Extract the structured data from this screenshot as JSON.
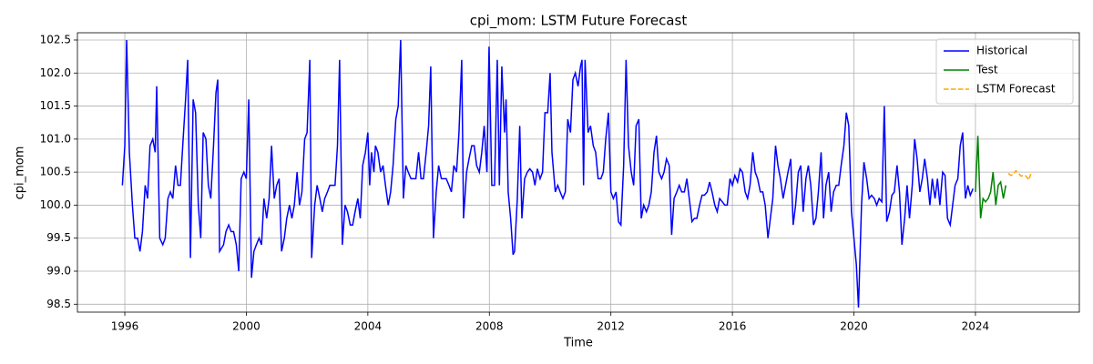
{
  "chart_data": {
    "type": "line",
    "title": "cpi_mom: LSTM Future Forecast",
    "xlabel": "Time",
    "ylabel": "cpi_mom",
    "xlim": [
      1994.44,
      2027.42
    ],
    "ylim": [
      98.38,
      102.61
    ],
    "xticks": [
      1996,
      2000,
      2004,
      2008,
      2012,
      2016,
      2020,
      2024
    ],
    "yticks": [
      {
        "value": 98.5,
        "label": "98.5"
      },
      {
        "value": 99,
        "label": "99.0"
      },
      {
        "value": 99.5,
        "label": "99.5"
      },
      {
        "value": 100,
        "label": "100.0"
      },
      {
        "value": 100.5,
        "label": "100.5"
      },
      {
        "value": 101,
        "label": "101.0"
      },
      {
        "value": 101.5,
        "label": "101.5"
      },
      {
        "value": 102,
        "label": "102.0"
      },
      {
        "value": 102.5,
        "label": "102.5"
      }
    ],
    "grid": true,
    "legend": "upper right",
    "series": [
      {
        "name": "Historical",
        "color": "#0000ff",
        "linestyle": "solid",
        "x": [
          1995.92,
          1996.0,
          1996.06,
          1996.15,
          1996.25,
          1996.33,
          1996.42,
          1996.5,
          1996.58,
          1996.67,
          1996.75,
          1996.83,
          1996.92,
          1997.0,
          1997.05,
          1997.15,
          1997.25,
          1997.33,
          1997.42,
          1997.5,
          1997.58,
          1997.67,
          1997.75,
          1997.83,
          1997.92,
          1998.0,
          1998.07,
          1998.16,
          1998.25,
          1998.33,
          1998.42,
          1998.5,
          1998.58,
          1998.67,
          1998.75,
          1998.83,
          1998.92,
          1999.0,
          1999.06,
          1999.12,
          1999.25,
          1999.33,
          1999.42,
          1999.5,
          1999.58,
          1999.67,
          1999.75,
          1999.83,
          1999.92,
          2000.0,
          2000.08,
          2000.17,
          2000.25,
          2000.33,
          2000.42,
          2000.5,
          2000.58,
          2000.67,
          2000.75,
          2000.83,
          2000.92,
          2001.0,
          2001.08,
          2001.16,
          2001.25,
          2001.33,
          2001.42,
          2001.5,
          2001.58,
          2001.67,
          2001.75,
          2001.83,
          2001.92,
          2002.0,
          2002.09,
          2002.15,
          2002.25,
          2002.33,
          2002.42,
          2002.5,
          2002.58,
          2002.67,
          2002.75,
          2002.83,
          2002.92,
          2003.0,
          2003.07,
          2003.16,
          2003.25,
          2003.33,
          2003.42,
          2003.5,
          2003.58,
          2003.67,
          2003.75,
          2003.83,
          2003.92,
          2004.0,
          2004.06,
          2004.12,
          2004.2,
          2004.25,
          2004.33,
          2004.42,
          2004.5,
          2004.58,
          2004.67,
          2004.75,
          2004.83,
          2004.92,
          2005.0,
          2005.08,
          2005.17,
          2005.25,
          2005.33,
          2005.42,
          2005.5,
          2005.58,
          2005.67,
          2005.75,
          2005.83,
          2005.92,
          2006.0,
          2006.07,
          2006.16,
          2006.25,
          2006.33,
          2006.42,
          2006.5,
          2006.58,
          2006.67,
          2006.75,
          2006.83,
          2006.92,
          2007.0,
          2007.09,
          2007.15,
          2007.25,
          2007.33,
          2007.42,
          2007.5,
          2007.58,
          2007.67,
          2007.75,
          2007.83,
          2007.92,
          2007.99,
          2008.08,
          2008.17,
          2008.26,
          2008.33,
          2008.41,
          2008.5,
          2008.55,
          2008.62,
          2008.7,
          2008.78,
          2008.83,
          2008.92,
          2009.0,
          2009.07,
          2009.16,
          2009.25,
          2009.33,
          2009.42,
          2009.5,
          2009.58,
          2009.67,
          2009.75,
          2009.83,
          2009.92,
          2010.0,
          2010.06,
          2010.17,
          2010.25,
          2010.33,
          2010.42,
          2010.5,
          2010.58,
          2010.67,
          2010.75,
          2010.83,
          2010.92,
          2011.0,
          2011.05,
          2011.1,
          2011.15,
          2011.25,
          2011.33,
          2011.42,
          2011.5,
          2011.58,
          2011.67,
          2011.75,
          2011.83,
          2011.92,
          2012.0,
          2012.08,
          2012.17,
          2012.25,
          2012.33,
          2012.42,
          2012.5,
          2012.58,
          2012.67,
          2012.75,
          2012.83,
          2012.92,
          2013.0,
          2013.08,
          2013.17,
          2013.25,
          2013.33,
          2013.42,
          2013.5,
          2013.58,
          2013.67,
          2013.75,
          2013.83,
          2013.92,
          2014.0,
          2014.08,
          2014.17,
          2014.25,
          2014.33,
          2014.42,
          2014.5,
          2014.58,
          2014.67,
          2014.75,
          2014.83,
          2014.92,
          2015.0,
          2015.08,
          2015.17,
          2015.25,
          2015.33,
          2015.42,
          2015.5,
          2015.58,
          2015.67,
          2015.75,
          2015.83,
          2015.92,
          2016.0,
          2016.08,
          2016.17,
          2016.25,
          2016.33,
          2016.42,
          2016.5,
          2016.58,
          2016.67,
          2016.75,
          2016.83,
          2016.92,
          2017.0,
          2017.08,
          2017.17,
          2017.25,
          2017.33,
          2017.42,
          2017.5,
          2017.58,
          2017.67,
          2017.75,
          2017.83,
          2017.92,
          2018.0,
          2018.08,
          2018.17,
          2018.25,
          2018.33,
          2018.42,
          2018.5,
          2018.58,
          2018.67,
          2018.75,
          2018.83,
          2018.92,
          2019.0,
          2019.08,
          2019.17,
          2019.25,
          2019.33,
          2019.42,
          2019.5,
          2019.58,
          2019.67,
          2019.75,
          2019.83,
          2019.92,
          2020.0,
          2020.08,
          2020.15,
          2020.25,
          2020.33,
          2020.42,
          2020.5,
          2020.58,
          2020.67,
          2020.75,
          2020.83,
          2020.92,
          2021.0,
          2021.08,
          2021.17,
          2021.25,
          2021.33,
          2021.42,
          2021.5,
          2021.58,
          2021.67,
          2021.75,
          2021.83,
          2021.92,
          2022.0,
          2022.08,
          2022.17,
          2022.25,
          2022.33,
          2022.42,
          2022.5,
          2022.58,
          2022.67,
          2022.75,
          2022.83,
          2022.92,
          2023.0,
          2023.08,
          2023.17,
          2023.25,
          2023.33,
          2023.42,
          2023.5,
          2023.58,
          2023.67,
          2023.75,
          2023.83,
          2023.92
        ],
        "values": [
          100.3,
          100.9,
          102.5,
          100.8,
          100.0,
          99.5,
          99.5,
          99.3,
          99.6,
          100.3,
          100.1,
          100.9,
          101.0,
          100.8,
          101.8,
          99.5,
          99.4,
          99.5,
          100.1,
          100.2,
          100.1,
          100.6,
          100.3,
          100.3,
          101.0,
          101.6,
          102.2,
          99.2,
          101.6,
          101.4,
          100.0,
          99.5,
          101.1,
          101.0,
          100.3,
          100.1,
          100.9,
          101.7,
          101.9,
          99.3,
          99.4,
          99.6,
          99.7,
          99.6,
          99.6,
          99.4,
          99.0,
          100.4,
          100.5,
          100.4,
          101.6,
          98.9,
          99.3,
          99.4,
          99.5,
          99.4,
          100.1,
          99.8,
          100.1,
          100.9,
          100.1,
          100.3,
          100.4,
          99.3,
          99.5,
          99.8,
          100.0,
          99.8,
          100.0,
          100.5,
          100.0,
          100.2,
          101.0,
          101.1,
          102.2,
          99.2,
          100.0,
          100.3,
          100.1,
          99.9,
          100.1,
          100.2,
          100.3,
          100.3,
          100.3,
          100.9,
          102.2,
          99.4,
          100.0,
          99.9,
          99.7,
          99.7,
          99.9,
          100.1,
          99.8,
          100.6,
          100.8,
          101.1,
          100.3,
          100.8,
          100.5,
          100.9,
          100.8,
          100.5,
          100.6,
          100.3,
          100.0,
          100.2,
          100.6,
          101.3,
          101.5,
          102.5,
          100.1,
          100.6,
          100.5,
          100.4,
          100.4,
          100.4,
          100.8,
          100.4,
          100.4,
          100.8,
          101.2,
          102.1,
          99.5,
          100.2,
          100.6,
          100.4,
          100.4,
          100.4,
          100.3,
          100.2,
          100.6,
          100.5,
          101.1,
          102.2,
          99.8,
          100.5,
          100.7,
          100.9,
          100.9,
          100.6,
          100.5,
          100.8,
          101.2,
          100.5,
          102.4,
          100.3,
          100.3,
          102.2,
          100.3,
          102.1,
          101.1,
          101.6,
          100.2,
          99.8,
          99.25,
          99.3,
          100.1,
          101.2,
          99.8,
          100.4,
          100.5,
          100.55,
          100.5,
          100.3,
          100.55,
          100.4,
          100.5,
          101.4,
          101.4,
          102.0,
          100.8,
          100.2,
          100.3,
          100.2,
          100.1,
          100.2,
          101.3,
          101.1,
          101.9,
          102.0,
          101.8,
          102.1,
          102.2,
          100.3,
          102.2,
          101.1,
          101.2,
          100.9,
          100.8,
          100.4,
          100.4,
          100.5,
          101.0,
          101.4,
          100.2,
          100.1,
          100.2,
          99.75,
          99.7,
          100.6,
          102.2,
          100.9,
          100.5,
          100.3,
          101.2,
          101.3,
          99.8,
          100.0,
          99.9,
          100.0,
          100.2,
          100.8,
          101.05,
          100.5,
          100.4,
          100.5,
          100.7,
          100.6,
          99.55,
          100.1,
          100.2,
          100.3,
          100.2,
          100.2,
          100.4,
          100.1,
          99.75,
          99.8,
          99.8,
          100.0,
          100.15,
          100.15,
          100.2,
          100.35,
          100.2,
          100.0,
          99.9,
          100.1,
          100.05,
          100.0,
          100.0,
          100.4,
          100.3,
          100.45,
          100.35,
          100.55,
          100.5,
          100.2,
          100.1,
          100.3,
          100.8,
          100.5,
          100.4,
          100.2,
          100.2,
          100.0,
          99.5,
          99.8,
          100.1,
          100.9,
          100.6,
          100.4,
          100.1,
          100.3,
          100.5,
          100.7,
          99.7,
          100.0,
          100.5,
          100.6,
          99.9,
          100.4,
          100.6,
          100.3,
          99.7,
          99.8,
          100.2,
          100.8,
          99.8,
          100.3,
          100.5,
          99.9,
          100.2,
          100.3,
          100.3,
          100.6,
          100.9,
          101.4,
          101.2,
          99.9,
          99.5,
          99.1,
          98.45,
          100.0,
          100.65,
          100.4,
          100.1,
          100.15,
          100.1,
          100.0,
          100.1,
          100.05,
          101.5,
          99.75,
          99.9,
          100.15,
          100.2,
          100.6,
          100.2,
          99.4,
          99.8,
          100.3,
          99.8,
          100.3,
          101.0,
          100.7,
          100.2,
          100.4,
          100.7,
          100.4,
          100.0,
          100.4,
          100.1,
          100.4,
          100.0,
          100.5,
          100.45,
          99.8,
          99.7,
          100.0,
          100.3,
          100.4,
          100.9,
          101.1,
          100.1,
          100.3,
          100.15,
          100.25
        ]
      },
      {
        "name": "Test",
        "color": "#008000",
        "linestyle": "solid",
        "x": [
          2024.0,
          2024.08,
          2024.17,
          2024.25,
          2024.33,
          2024.42,
          2024.5,
          2024.58,
          2024.67,
          2024.75,
          2024.83,
          2024.92,
          2025.0
        ],
        "values": [
          100.2,
          101.05,
          99.8,
          100.1,
          100.05,
          100.1,
          100.2,
          100.5,
          100.0,
          100.3,
          100.35,
          100.1,
          100.3
        ]
      },
      {
        "name": "LSTM Forecast",
        "color": "#ffa500",
        "linestyle": "dashed",
        "x": [
          2025.08,
          2025.17,
          2025.25,
          2025.33,
          2025.42,
          2025.5,
          2025.58,
          2025.67,
          2025.75,
          2025.83
        ],
        "values": [
          100.48,
          100.45,
          100.47,
          100.52,
          100.48,
          100.44,
          100.45,
          100.44,
          100.38,
          100.48
        ]
      }
    ]
  }
}
